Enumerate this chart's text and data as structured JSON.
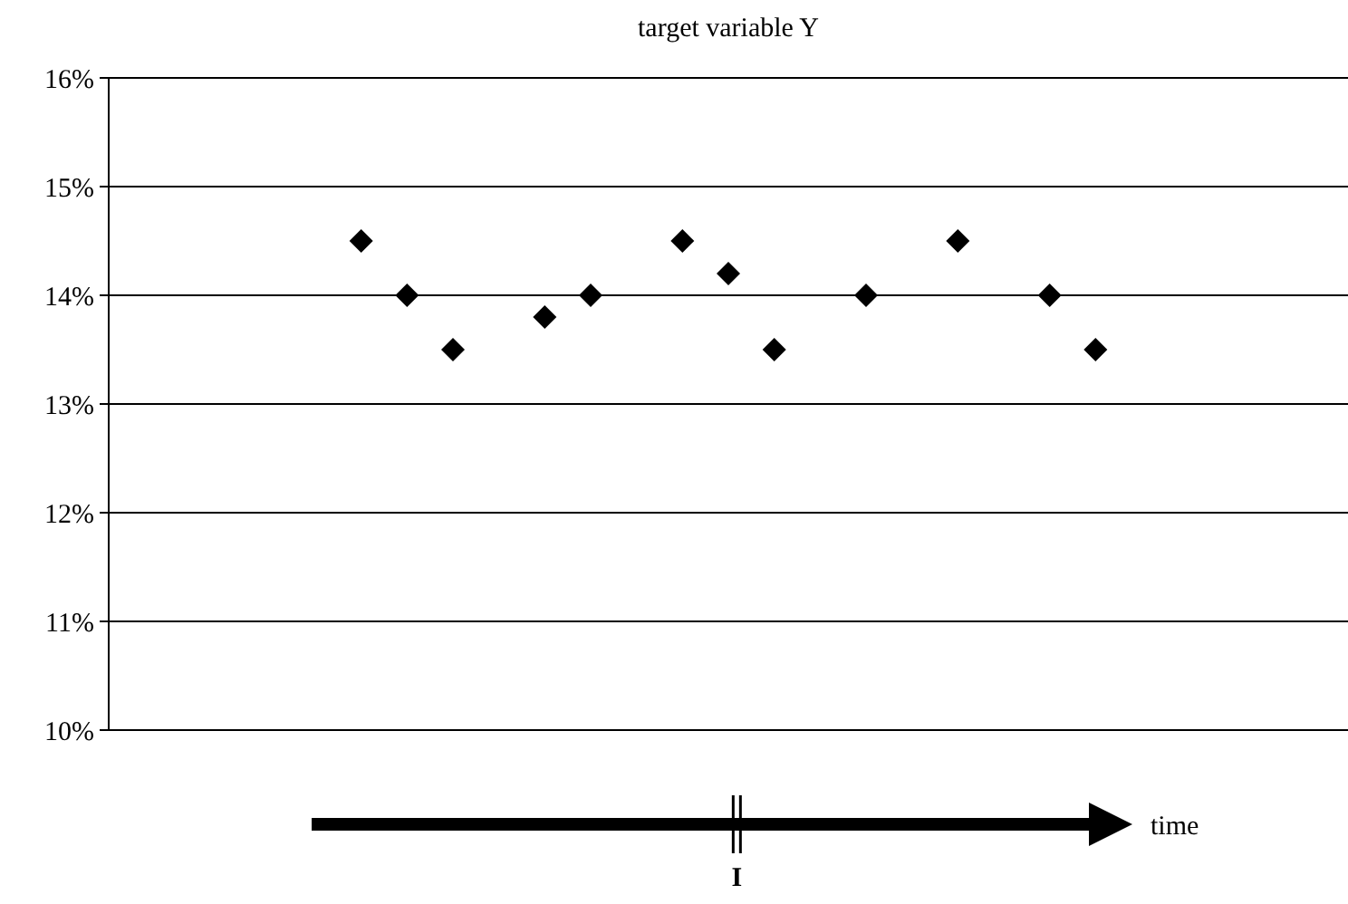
{
  "chart_data": {
    "type": "scatter",
    "title": "target variable Y",
    "xlabel": "time",
    "categories": [
      null,
      null,
      null,
      null,
      null,
      null,
      null,
      null,
      null,
      null,
      null,
      null,
      null,
      null,
      null,
      null,
      null,
      null,
      null,
      null,
      null,
      null,
      null,
      null,
      null,
      null,
      null
    ],
    "series": [
      {
        "color": "#000000",
        "values": [
          null,
          null,
          null,
          null,
          null,
          14.5,
          14.0,
          13.5,
          null,
          13.8,
          14.0,
          null,
          14.5,
          14.2,
          13.5,
          null,
          14.0,
          null,
          14.5,
          null,
          14.0,
          13.5,
          null,
          null,
          null,
          null,
          null
        ]
      }
    ],
    "ylim": [
      10,
      16
    ],
    "yticks": [
      {
        "value": 10,
        "label": "10%"
      },
      {
        "value": 11,
        "label": "11%"
      },
      {
        "value": 12,
        "label": "12%"
      },
      {
        "value": 13,
        "label": "13%"
      },
      {
        "value": 14,
        "label": "14%"
      },
      {
        "value": 15,
        "label": "15%"
      },
      {
        "value": 16,
        "label": "16%"
      }
    ],
    "grid": "y",
    "tick_labels": "y",
    "marker": "diamond",
    "annotations": [
      "I"
    ]
  }
}
